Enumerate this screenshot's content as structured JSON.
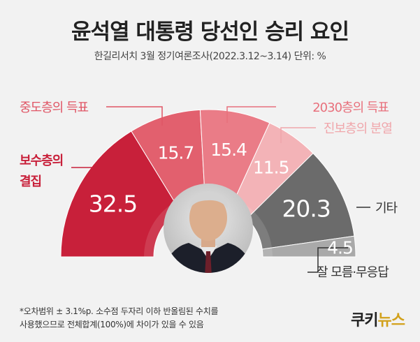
{
  "header": {
    "title": "윤석열 대통령 당선인 승리 요인",
    "subtitle": "한길리서치  3월 정기여론조사(2022.3.12~3.14) 단위: %"
  },
  "chart_data": {
    "type": "pie",
    "shape": "half-donut",
    "title": "윤석열 대통령 당선인 승리 요인",
    "subtitle": "한길리서치 3월 정기여론조사(2022.3.12~3.14) 단위: %",
    "categories": [
      "보수층의 결집",
      "중도층의 득표",
      "2030층의 득표",
      "진보층의 분열",
      "기타",
      "잘 모름·무응답"
    ],
    "values": [
      32.5,
      15.7,
      15.4,
      11.5,
      20.3,
      4.5
    ],
    "value_labels": [
      "32.5",
      "15.7",
      "15.4",
      "11.5",
      "20.3",
      "4.5"
    ],
    "legend_labels": [
      "보수층의\n결집",
      "중도층의 득표",
      "2030층의 득표",
      "진보층의 분열",
      "기타",
      "잘 모름·무응답"
    ],
    "colors": [
      "#c8203a",
      "#e2606e",
      "#ea7c87",
      "#f3b3b7",
      "#6b6b6b",
      "#a9a9a9"
    ],
    "label_colors": [
      "#c8203a",
      "#e05565",
      "#e8707c",
      "#f0a6ab",
      "#333333",
      "#333333"
    ]
  },
  "footnote": {
    "line1": "*오차범위 ± 3.1%p. 소수점 두자리 이하 반올림된 수치를",
    "line2": "  사용했으므로 전체합계(100%)에 차이가 있을 수 있음"
  },
  "logo": {
    "part1": "쿠키",
    "part2": "뉴스"
  }
}
